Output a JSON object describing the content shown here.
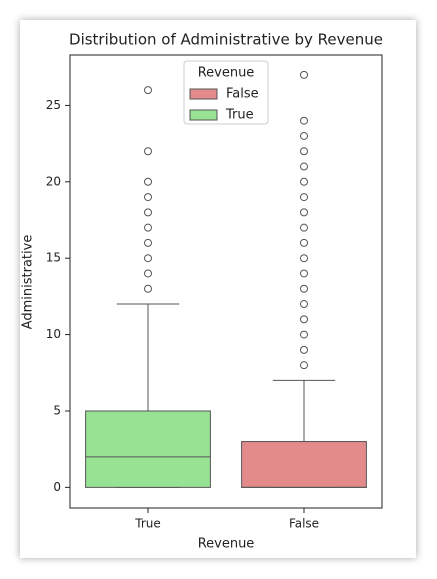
{
  "chart_data": {
    "type": "box",
    "title": "Distribution of Administrative by Revenue",
    "x_label": "Revenue",
    "y_label": "Administrative",
    "categories": [
      "True",
      "False"
    ],
    "legend": {
      "title": "Revenue",
      "loc": "upper center"
    },
    "series": [
      {
        "name": "False",
        "color": "#e38b8b",
        "whisker_low": 0,
        "q1": 0,
        "median": 0,
        "q3": 3,
        "whisker_high": 7,
        "outliers": [
          8,
          9,
          10,
          11,
          12,
          13,
          14,
          15,
          16,
          17,
          18,
          19,
          20,
          21,
          22,
          23,
          24,
          27
        ]
      },
      {
        "name": "True",
        "color": "#98e294",
        "whisker_low": 0,
        "q1": 0,
        "median": 2,
        "q3": 5,
        "whisker_high": 12,
        "outliers": [
          13,
          14,
          15,
          16,
          17,
          18,
          19,
          20,
          22,
          26
        ]
      }
    ],
    "ylim": [
      -1.35,
      28.3
    ],
    "yticks": [
      0,
      5,
      10,
      15,
      20,
      25
    ],
    "grid": false
  }
}
